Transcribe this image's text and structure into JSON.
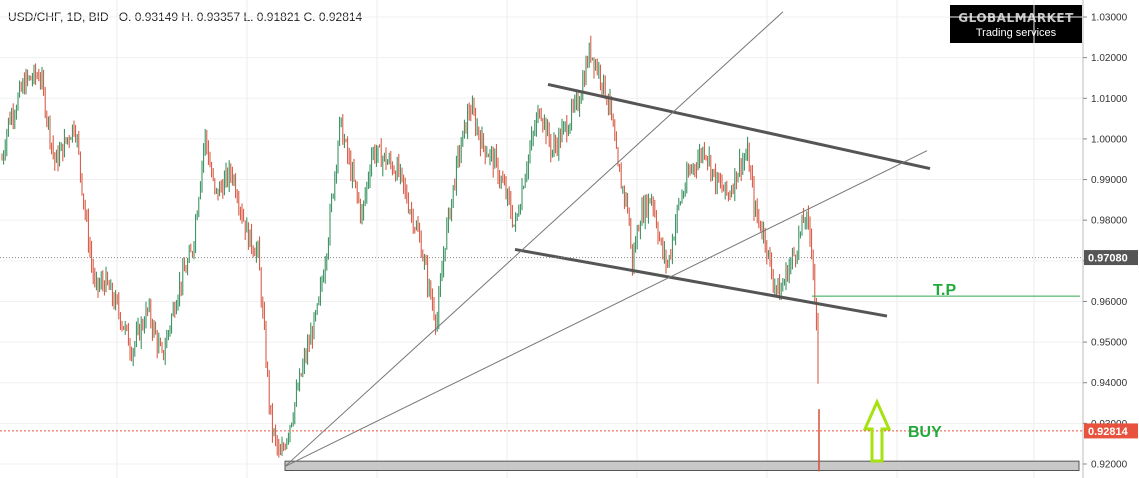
{
  "header": {
    "symbol": "USD/CHF, 1D, BID",
    "ohlc": "O. 0.93149 H. 0.93357 L. 0.91821 C. 0.92814"
  },
  "logo": {
    "brand": "GLOBALMARKET",
    "tagline": "Trading services"
  },
  "colors": {
    "up": "#2e8b57",
    "down": "#d64f38",
    "current_tag": "#e8533f",
    "ref_tag": "#555555",
    "tp_line": "#2ca84a",
    "annotation": "#1faa3a",
    "buy_arrow": "#a5e20f"
  },
  "chart_data": {
    "type": "candlestick",
    "instrument": "USD/CHF",
    "timeframe": "1D",
    "ylim": [
      0.9174,
      1.0315
    ],
    "y_ticks": [
      "1.03000",
      "1.02000",
      "1.01000",
      "1.00000",
      "0.99000",
      "0.98000",
      "0.97000",
      "0.96000",
      "0.95000",
      "0.94000",
      "0.93000",
      "0.92000"
    ],
    "price_tags": {
      "reference": "0.97080",
      "current": "0.92814"
    },
    "annotations": {
      "take_profit": "T.P",
      "signal": "BUY"
    },
    "take_profit_level": 0.9613,
    "support_zone": [
      0.9184,
      0.9207
    ],
    "path_anchors": [
      [
        0,
        0.992
      ],
      [
        8,
        1.004
      ],
      [
        25,
        1.014
      ],
      [
        40,
        1.016
      ],
      [
        55,
        0.994
      ],
      [
        75,
        1.004
      ],
      [
        85,
        0.982
      ],
      [
        95,
        0.963
      ],
      [
        105,
        0.965
      ],
      [
        118,
        0.958
      ],
      [
        132,
        0.948
      ],
      [
        148,
        0.958
      ],
      [
        162,
        0.946
      ],
      [
        178,
        0.963
      ],
      [
        192,
        0.972
      ],
      [
        205,
        1.001
      ],
      [
        215,
        0.986
      ],
      [
        232,
        0.992
      ],
      [
        248,
        0.976
      ],
      [
        258,
        0.972
      ],
      [
        266,
        0.946
      ],
      [
        271,
        0.93
      ],
      [
        280,
        0.921
      ],
      [
        292,
        0.932
      ],
      [
        305,
        0.946
      ],
      [
        318,
        0.958
      ],
      [
        328,
        0.976
      ],
      [
        340,
        1.004
      ],
      [
        352,
        0.991
      ],
      [
        362,
        0.981
      ],
      [
        372,
        0.997
      ],
      [
        385,
        0.995
      ],
      [
        398,
        0.992
      ],
      [
        410,
        0.983
      ],
      [
        420,
        0.975
      ],
      [
        430,
        0.962
      ],
      [
        437,
        0.955
      ],
      [
        445,
        0.975
      ],
      [
        458,
        0.995
      ],
      [
        470,
        1.008
      ],
      [
        482,
        0.999
      ],
      [
        495,
        0.994
      ],
      [
        508,
        0.985
      ],
      [
        515,
        0.978
      ],
      [
        525,
        0.992
      ],
      [
        540,
        1.008
      ],
      [
        552,
        0.997
      ],
      [
        566,
        1.003
      ],
      [
        578,
        1.009
      ],
      [
        590,
        1.022
      ],
      [
        600,
        1.016
      ],
      [
        610,
        1.008
      ],
      [
        618,
        0.992
      ],
      [
        628,
        0.983
      ],
      [
        632,
        0.969
      ],
      [
        640,
        0.981
      ],
      [
        652,
        0.986
      ],
      [
        662,
        0.972
      ],
      [
        668,
        0.969
      ],
      [
        678,
        0.983
      ],
      [
        690,
        0.992
      ],
      [
        705,
        0.998
      ],
      [
        715,
        0.99
      ],
      [
        728,
        0.986
      ],
      [
        740,
        0.994
      ],
      [
        748,
        0.996
      ],
      [
        755,
        0.982
      ],
      [
        765,
        0.976
      ],
      [
        772,
        0.966
      ],
      [
        780,
        0.962
      ],
      [
        788,
        0.968
      ],
      [
        795,
        0.972
      ],
      [
        805,
        0.981
      ],
      [
        812,
        0.974
      ],
      [
        817,
        0.951
      ],
      [
        819,
        0.928
      ]
    ],
    "trend_lines": [
      {
        "name": "channel-upper",
        "from": [
          548,
          1.0134
        ],
        "to": [
          930,
          0.9927
        ]
      },
      {
        "name": "channel-lower",
        "from": [
          515,
          0.9728
        ],
        "to": [
          887,
          0.9564
        ]
      },
      {
        "name": "steep-trend",
        "from": [
          285,
          0.9194
        ],
        "to": [
          783,
          1.0313
        ]
      },
      {
        "name": "shallow-trend",
        "from": [
          285,
          0.9194
        ],
        "to": [
          927,
          0.9971
        ]
      }
    ]
  }
}
